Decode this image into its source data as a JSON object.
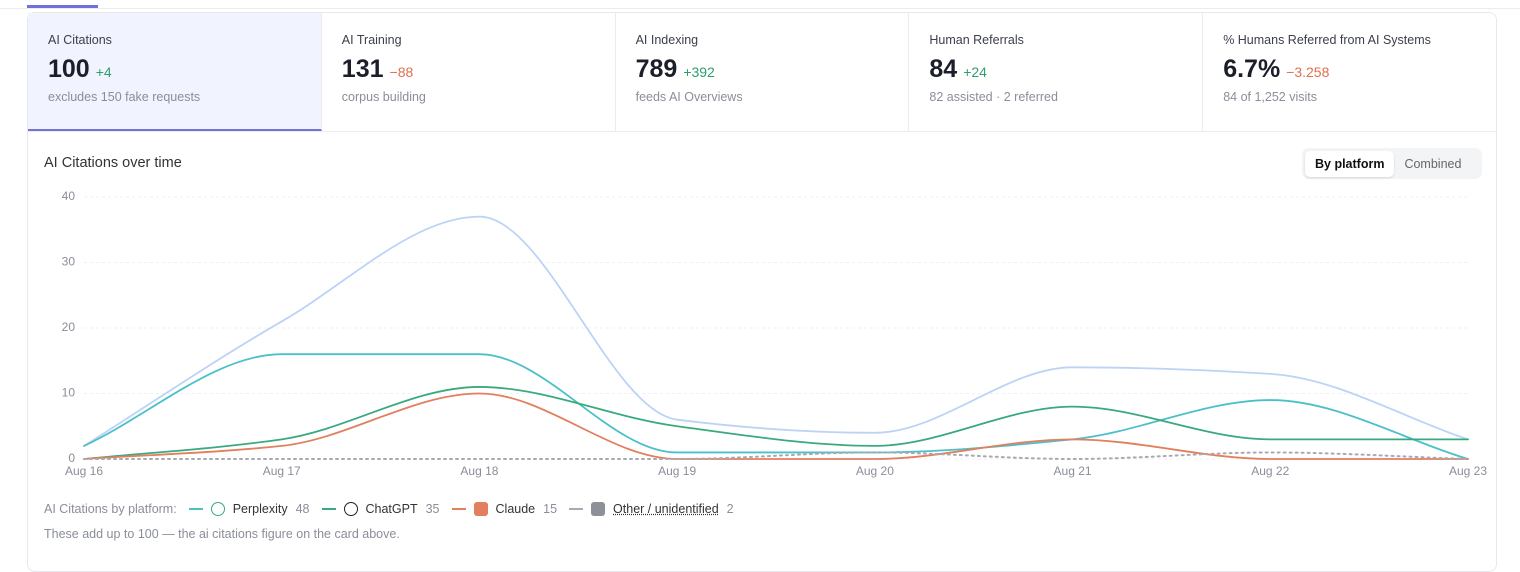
{
  "cards": [
    {
      "label": "AI Citations",
      "value": "100",
      "delta": "+4",
      "delta_color": "#2e9e6e",
      "note": "excludes 150 fake requests"
    },
    {
      "label": "AI Training",
      "value": "131",
      "delta": "−88",
      "delta_color": "#e0704c",
      "note": "corpus building"
    },
    {
      "label": "AI Indexing",
      "value": "789",
      "delta": "+392",
      "delta_color": "#2e9e6e",
      "note": "feeds AI Overviews"
    },
    {
      "label": "Human Referrals",
      "value": "84",
      "delta": "+24",
      "delta_color": "#2e9e6e",
      "note": "82 assisted · 2 referred"
    },
    {
      "label": "% Humans Referred from AI Systems",
      "value": "6.7%",
      "delta": "−3.258",
      "delta_color": "#e0704c",
      "note": "84 of 1,252 visits"
    }
  ],
  "chart_title": "AI Citations over time",
  "toggle": [
    "By platform",
    "Combined"
  ],
  "chart_data": {
    "type": "line",
    "categories": [
      "Aug 16",
      "Aug 17",
      "Aug 18",
      "Aug 19",
      "Aug 20",
      "Aug 21",
      "Aug 22",
      "Aug 23"
    ],
    "series": [
      {
        "color": "#bcd3f6",
        "values": [
          2,
          21,
          37,
          6,
          4,
          14,
          13,
          3
        ]
      },
      {
        "name": "Perplexity",
        "color": "#4cc0c9",
        "values": [
          2,
          16,
          16,
          1,
          1,
          3,
          9,
          0
        ]
      },
      {
        "name": "ChatGPT",
        "color": "#3aa97f",
        "values": [
          0,
          3,
          11,
          5,
          2,
          8,
          3,
          3
        ]
      },
      {
        "name": "Claude",
        "color": "#e27f5e",
        "values": [
          0,
          2,
          10,
          0,
          0,
          3,
          0,
          0
        ]
      },
      {
        "name": "Other / unidentified",
        "color": "#a9a9b3",
        "dashed": true,
        "values": [
          0,
          0,
          0,
          0,
          1,
          0,
          1,
          0
        ]
      }
    ],
    "ylim": [
      0,
      40
    ],
    "yticks": [
      0,
      10,
      20,
      30,
      40
    ],
    "grid": true
  },
  "legend": {
    "title": "AI Citations by platform:",
    "counts": [
      48,
      35,
      15,
      2
    ]
  },
  "footnote": "These add up to 100 — the ai citations figure on the card above."
}
